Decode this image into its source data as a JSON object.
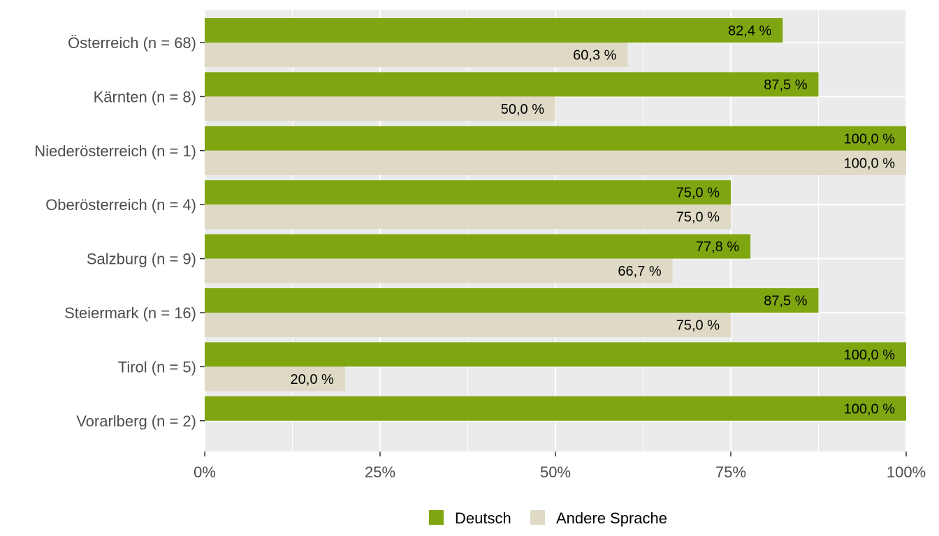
{
  "chart_data": {
    "type": "bar",
    "orientation": "horizontal",
    "categories": [
      "Österreich (n = 68)",
      "Kärnten (n = 8)",
      "Niederösterreich (n = 1)",
      "Oberösterreich (n = 4)",
      "Salzburg (n = 9)",
      "Steiermark (n = 16)",
      "Tirol (n = 5)",
      "Vorarlberg (n = 2)"
    ],
    "series": [
      {
        "name": "Deutsch",
        "color": "#7fa611",
        "values": [
          82.4,
          87.5,
          100.0,
          75.0,
          77.8,
          87.5,
          100.0,
          100.0
        ],
        "labels": [
          "82,4 %",
          "87,5 %",
          "100,0 %",
          "75,0 %",
          "77,8 %",
          "87,5 %",
          "100,0 %",
          "100,0 %"
        ]
      },
      {
        "name": "Andere Sprache",
        "color": "#dfdac5",
        "values": [
          60.3,
          50.0,
          100.0,
          75.0,
          66.7,
          75.0,
          20.0,
          null
        ],
        "labels": [
          "60,3 %",
          "50,0 %",
          "100,0 %",
          "75,0 %",
          "66,7 %",
          "75,0 %",
          "20,0 %",
          ""
        ]
      }
    ],
    "xlim": [
      0,
      100
    ],
    "xticks": [
      0,
      25,
      50,
      75,
      100
    ],
    "xtick_labels": [
      "0%",
      "25%",
      "50%",
      "75%",
      "100%"
    ],
    "title": "",
    "xlabel": "",
    "ylabel": "",
    "grid": true,
    "panel_background": "#ebebeb",
    "legend_position": "bottom"
  }
}
